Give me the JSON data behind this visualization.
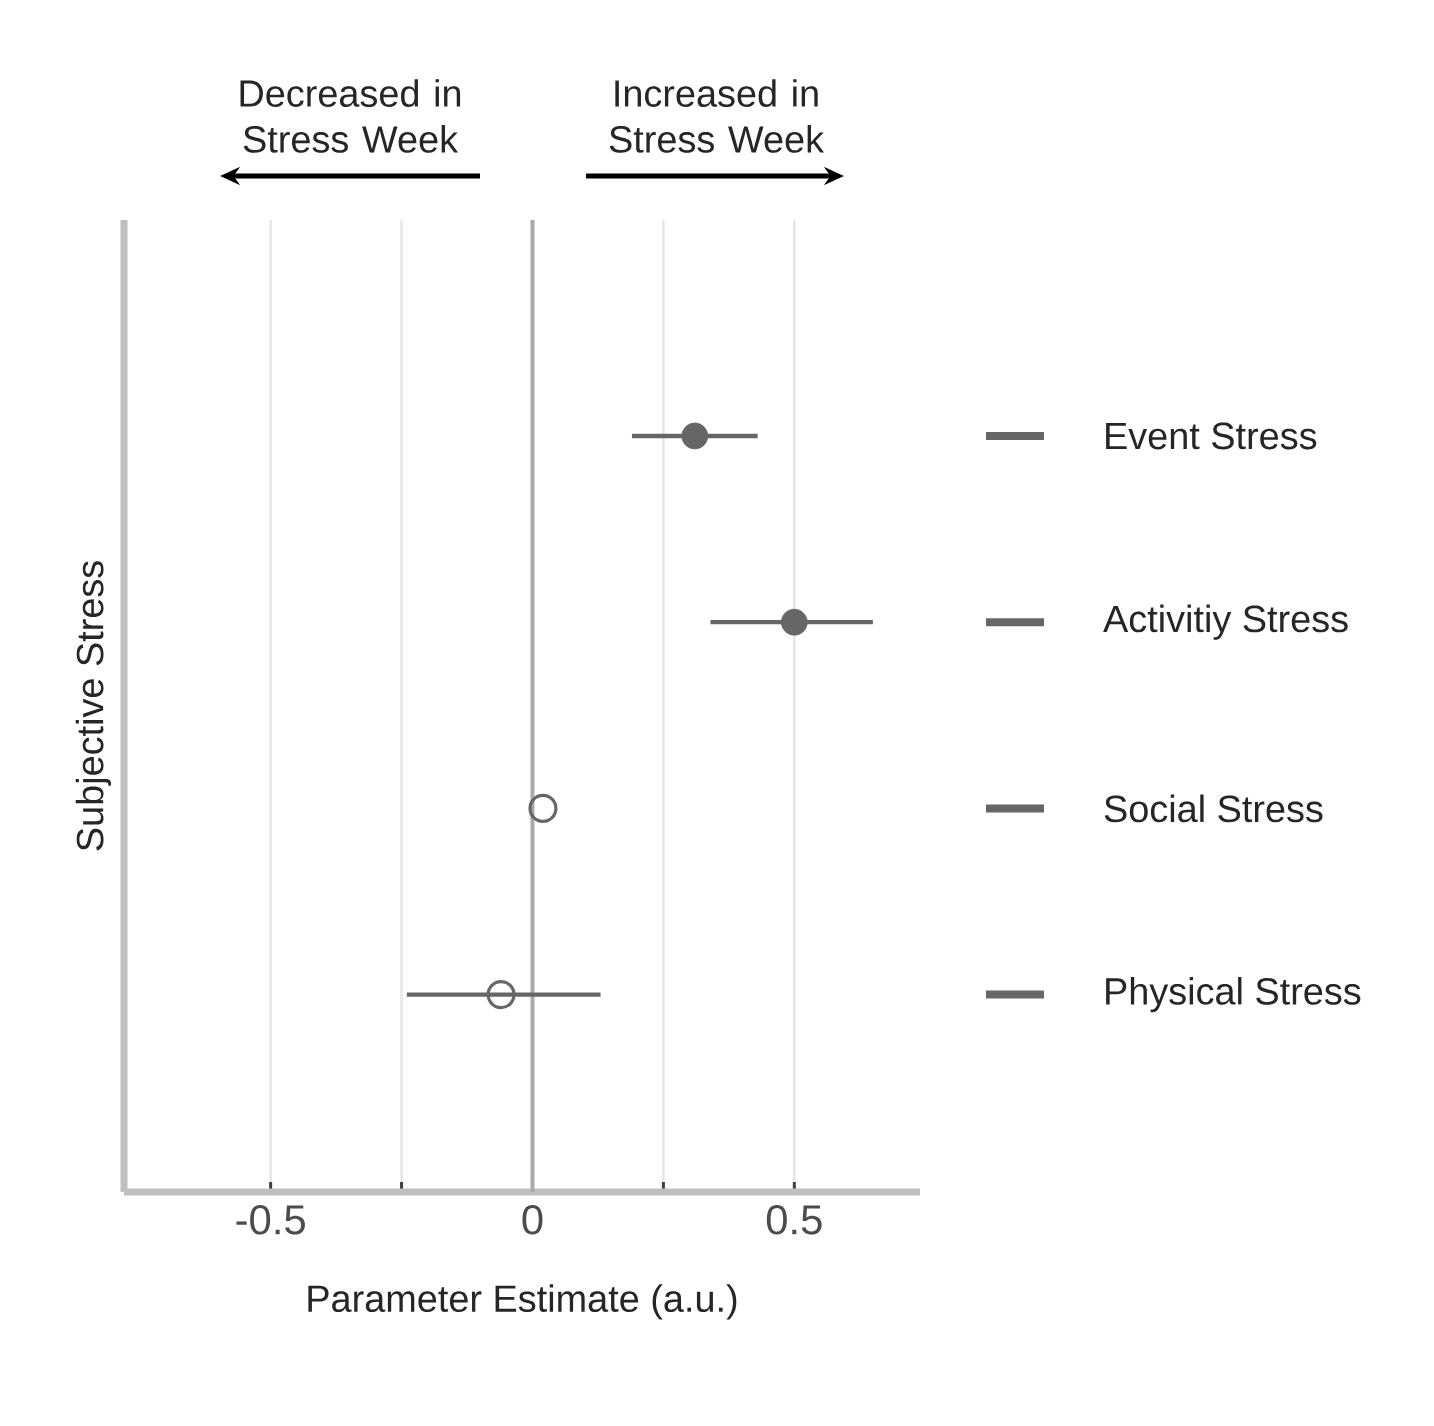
{
  "chart_data": {
    "type": "scatter",
    "orientation": "horizontal",
    "xlabel": "Parameter Estimate (a.u.)",
    "ylabel": "Subjective Stress",
    "categories": [
      "Event Stress",
      "Activitiy Stress",
      "Social Stress",
      "Physical Stress"
    ],
    "series": [
      {
        "color": "#666666",
        "values": [
          0.31,
          0.5,
          null,
          null
        ],
        "errors": [
          [
            0.19,
            0.43
          ],
          [
            0.34,
            0.65
          ],
          null,
          null
        ]
      },
      {
        "color": "#666666",
        "values": [
          null,
          null,
          0.02,
          -0.06
        ],
        "errors": [
          null,
          null,
          null,
          [
            -0.24,
            0.13
          ]
        ]
      }
    ],
    "marker": "circle",
    "grid": "x",
    "xlim": [
      -0.78,
      0.74
    ],
    "xticks": [
      -0.5,
      {
        "value": -0.25,
        "label": null
      },
      0,
      {
        "value": 0.25,
        "label": null
      },
      0.5
    ],
    "ref_lines": [
      {
        "axis": "x",
        "value": 0,
        "color": "#aaaaaa"
      }
    ],
    "annotations": [
      "Decreased in Stress Week",
      "Increased in Stress Week"
    ]
  }
}
